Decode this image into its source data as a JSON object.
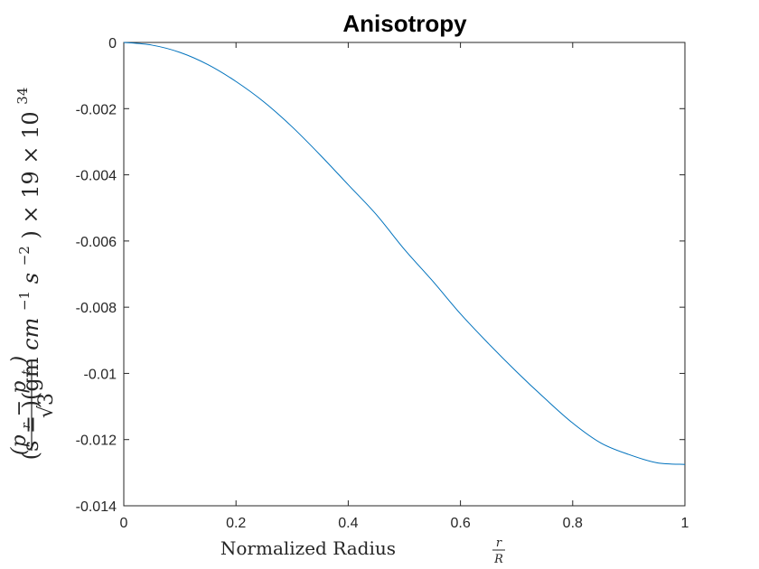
{
  "chart_data": {
    "type": "line",
    "title": "Anisotropy",
    "xlabel": {
      "prefix": "Normalized Radius",
      "frac_num": "r",
      "frac_den": "R"
    },
    "ylabel": {
      "open_part": "(s =",
      "frac_num": "(p",
      "frac_num_sub1": "r",
      "frac_num_mid": " − p",
      "frac_num_sub2": "t",
      "frac_num_close": ")",
      "frac_den": "√3",
      "units_open": ")(gm ",
      "units_cm": "cm",
      "units_cm_exp": "−1",
      "units_s": " s",
      "units_s_exp": "−2",
      "units_close": ") × 19 × 10",
      "units_exp": "34"
    },
    "xlim": [
      0,
      1
    ],
    "ylim": [
      -0.014,
      0
    ],
    "x_ticks": [
      "0",
      "0.2",
      "0.4",
      "0.6",
      "0.8",
      "1"
    ],
    "y_ticks": [
      "0",
      "-0.002",
      "-0.004",
      "-0.006",
      "-0.008",
      "-0.01",
      "-0.012",
      "-0.014"
    ],
    "grid": false,
    "legend": "none",
    "series": [
      {
        "color": "#0072BD",
        "x": [
          0,
          0.05,
          0.1,
          0.15,
          0.2,
          0.25,
          0.3,
          0.35,
          0.4,
          0.45,
          0.5,
          0.55,
          0.6,
          0.65,
          0.7,
          0.75,
          0.8,
          0.85,
          0.9,
          0.95,
          1.0
        ],
        "y": [
          0,
          -8e-05,
          -0.0003,
          -0.00067,
          -0.00118,
          -0.0018,
          -0.00255,
          -0.0034,
          -0.0043,
          -0.0052,
          -0.00625,
          -0.0072,
          -0.0082,
          -0.0091,
          -0.00995,
          -0.01075,
          -0.0115,
          -0.0121,
          -0.01245,
          -0.0127,
          -0.01275
        ]
      }
    ]
  }
}
